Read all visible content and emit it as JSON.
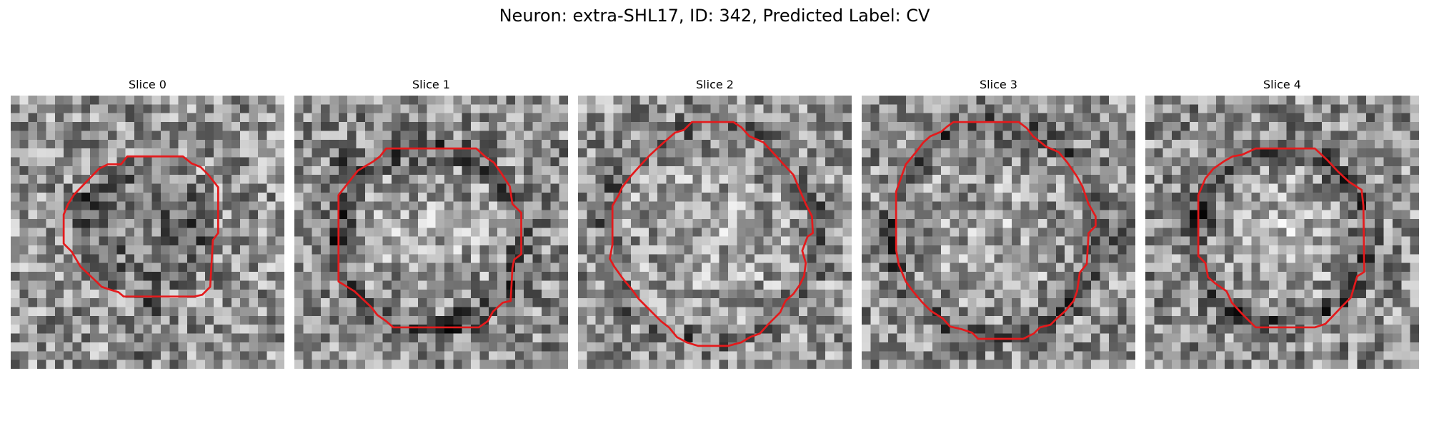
{
  "figure": {
    "title": "Neuron: extra-SHL17, ID: 342, Predicted Label: CV",
    "contour_color": "#e41a1c"
  },
  "panels": [
    {
      "title": "Slice 0"
    },
    {
      "title": "Slice 1"
    },
    {
      "title": "Slice 2"
    },
    {
      "title": "Slice 3"
    },
    {
      "title": "Slice 4"
    }
  ]
}
